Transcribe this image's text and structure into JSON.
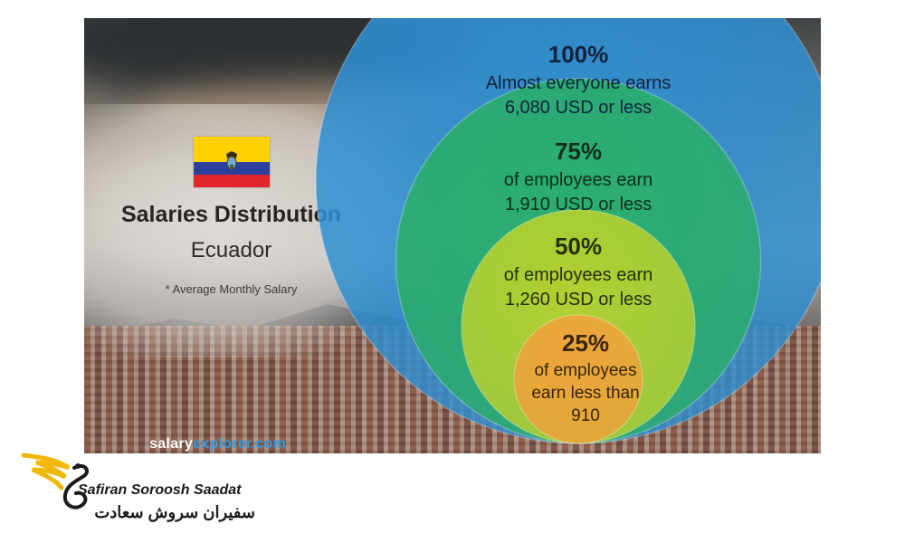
{
  "infographic": {
    "title": "Salaries Distribution",
    "country": "Ecuador",
    "note": "* Average Monthly Salary",
    "website_part1": "salary",
    "website_part2": "explorer.com",
    "flag_colors": [
      "#ffd100",
      "#2b3f9c",
      "#e0252b"
    ]
  },
  "chart_data": {
    "type": "nested-circles",
    "title": "Salaries Distribution",
    "subtitle": "Ecuador",
    "note": "* Average Monthly Salary",
    "series": [
      {
        "percent": 100,
        "label_pct": "100%",
        "line1": "Almost everyone earns",
        "line2": "6,080 USD or less",
        "line3": "",
        "value": 6080,
        "color": "#2f8fd2"
      },
      {
        "percent": 75,
        "label_pct": "75%",
        "line1": "of employees earn",
        "line2": "1,910 USD or less",
        "line3": "",
        "value": 1910,
        "color": "#2aae6a"
      },
      {
        "percent": 50,
        "label_pct": "50%",
        "line1": "of employees earn",
        "line2": "1,260 USD or less",
        "line3": "",
        "value": 1260,
        "color": "#b8d12e"
      },
      {
        "percent": 25,
        "label_pct": "25%",
        "line1": "of employees",
        "line2": "earn less than",
        "line3": "910",
        "value": 910,
        "color": "#f0a23a"
      }
    ]
  },
  "brand": {
    "name_en": "Safiran Soroosh Saadat",
    "name_fa": "سفیران سروش سعادت",
    "logo_colors": [
      "#f2b705",
      "#1a1a1a"
    ]
  }
}
